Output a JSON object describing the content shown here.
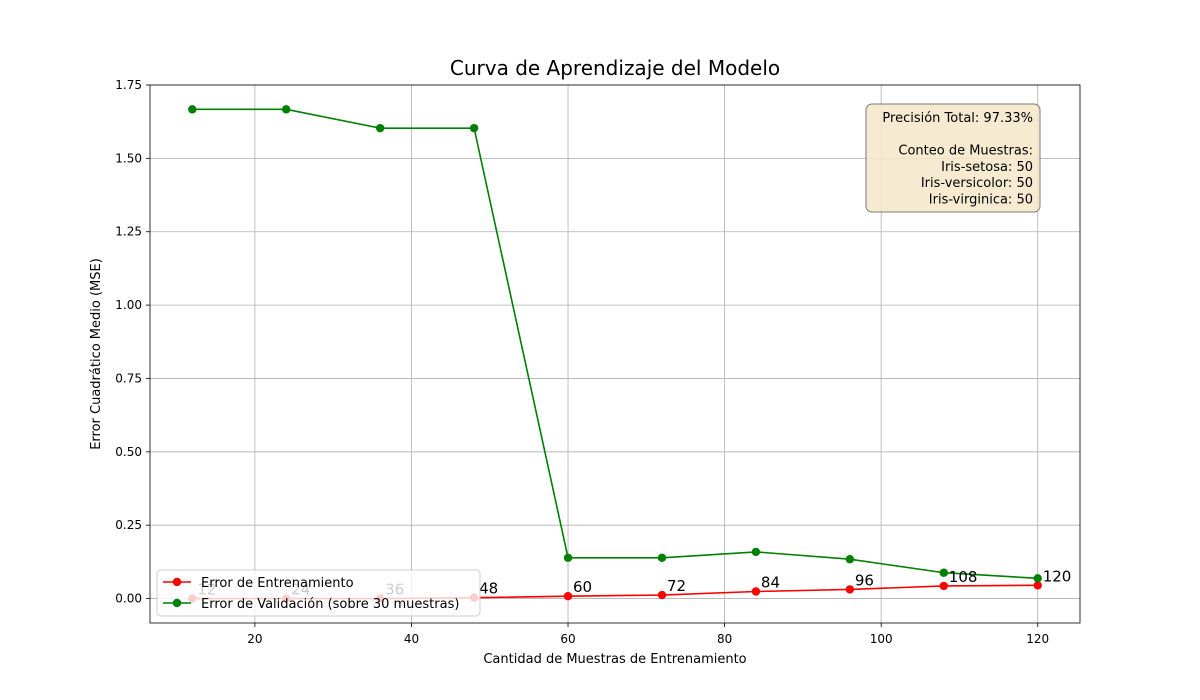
{
  "chart_data": {
    "type": "line",
    "title": "Curva de Aprendizaje del Modelo",
    "xlabel": "Cantidad de Muestras de Entrenamiento",
    "ylabel": "Error Cuadrático Medio (MSE)",
    "x": [
      12,
      24,
      36,
      48,
      60,
      72,
      84,
      96,
      108,
      120
    ],
    "xlim": [
      6.6,
      125.4
    ],
    "ylim": [
      -0.0833,
      1.75
    ],
    "xticks": [
      20,
      40,
      60,
      80,
      100,
      120
    ],
    "yticks": [
      0.0,
      0.25,
      0.5,
      0.75,
      1.0,
      1.25,
      1.5,
      1.75
    ],
    "xtick_labels": [
      "20",
      "40",
      "60",
      "80",
      "100",
      "120"
    ],
    "ytick_labels": [
      "0.00",
      "0.25",
      "0.50",
      "0.75",
      "1.00",
      "1.25",
      "1.50",
      "1.75"
    ],
    "grid": true,
    "legend_position": "lower-left",
    "series": [
      {
        "name": "Error de Entrenamiento",
        "color": "#ff0000",
        "values": [
          0.0,
          0.0,
          0.0,
          0.003,
          0.008,
          0.012,
          0.024,
          0.031,
          0.043,
          0.045
        ]
      },
      {
        "name": "Error de Validación (sobre 30 muestras)",
        "color": "#008000",
        "values": [
          1.667,
          1.667,
          1.603,
          1.603,
          0.139,
          0.139,
          0.159,
          0.134,
          0.088,
          0.069
        ]
      }
    ],
    "point_labels": [
      "12",
      "24",
      "36",
      "48",
      "60",
      "72",
      "84",
      "96",
      "108",
      "120"
    ],
    "info_box": {
      "lines": [
        "Precisión Total: 97.33%",
        "",
        "Conteo de Muestras:",
        "Iris-setosa: 50",
        "Iris-versicolor: 50",
        "Iris-virginica: 50"
      ],
      "background": "#f5e6c8"
    }
  }
}
